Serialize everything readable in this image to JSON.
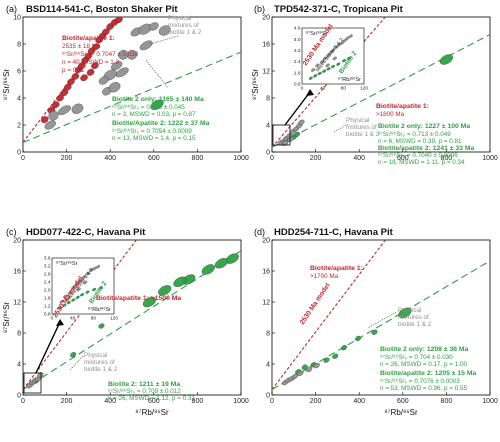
{
  "colors": {
    "biotite1": "#c0262b",
    "biotite2": "#2ea043",
    "mixture": "#909090",
    "model": "#c0262b",
    "frame": "#000000"
  },
  "chart_data": [
    {
      "type": "scatter",
      "panel_label": "(a)",
      "title": "BSD114-541-C, Boston Shaker Pit",
      "xlabel": "",
      "ylabel": "⁸⁷Sr/⁸⁶Sr",
      "xlim": [
        0,
        1000
      ],
      "ylim": [
        0,
        10
      ],
      "xticks": [
        "0",
        "200",
        "400",
        "600",
        "800",
        "1000"
      ],
      "yticks": [
        "0",
        "2",
        "4",
        "6",
        "8",
        "10"
      ],
      "series": [
        {
          "group": "biotite1",
          "points": [
            [
              100,
              2.4
            ],
            [
              130,
              3.1
            ],
            [
              150,
              3.5
            ],
            [
              170,
              4.0
            ],
            [
              190,
              4.4
            ],
            [
              205,
              4.8
            ],
            [
              220,
              5.2
            ],
            [
              240,
              5.6
            ],
            [
              255,
              6.1
            ],
            [
              270,
              6.4
            ],
            [
              285,
              6.8
            ],
            [
              300,
              7.1
            ],
            [
              315,
              7.5
            ],
            [
              335,
              7.8
            ],
            [
              350,
              8.3
            ],
            [
              365,
              8.6
            ],
            [
              380,
              8.9
            ],
            [
              400,
              9.3
            ],
            [
              420,
              9.6
            ],
            [
              440,
              9.8
            ],
            [
              310,
              5.9
            ],
            [
              330,
              6.4
            ],
            [
              280,
              5.5
            ]
          ]
        },
        {
          "group": "mixture",
          "points": [
            [
              385,
              4.5
            ],
            [
              420,
              4.8
            ],
            [
              455,
              5.9
            ],
            [
              500,
              7.2
            ],
            [
              520,
              8.9
            ],
            [
              560,
              9.1
            ],
            [
              600,
              9.3
            ],
            [
              650,
              9.0
            ],
            [
              565,
              7.9
            ],
            [
              460,
              7.2
            ],
            [
              430,
              6.4
            ],
            [
              400,
              5.7
            ],
            [
              370,
              5.3
            ],
            [
              250,
              3.2
            ],
            [
              190,
              3.1
            ],
            [
              140,
              2.7
            ],
            [
              125,
              2.0
            ]
          ]
        },
        {
          "group": "biotite2",
          "points": [
            [
              615,
              3.5
            ]
          ]
        }
      ],
      "lines": [
        {
          "group": "model",
          "points": [
            [
              0,
              0.72
            ],
            [
              440,
              10
            ]
          ]
        },
        {
          "group": "biotite2",
          "points": [
            [
              0,
              0.7
            ],
            [
              1000,
              7.4
            ]
          ]
        }
      ],
      "annotations": [
        {
          "text": "Biotite/apatite 1:",
          "color": "biotite1",
          "bold": true
        },
        {
          "text": "2535 ± 18 Ma",
          "color": "biotite1"
        },
        {
          "text": "⁸⁷Sr/⁸⁶Sr₀ = 0.7047 ± 0.010",
          "color": "biotite1"
        },
        {
          "text": "n = 40, MSWD = 1.3",
          "color": "biotite1"
        },
        {
          "text": "p = 0.11",
          "color": "biotite1"
        },
        {
          "text": "Physical",
          "color": "mixture"
        },
        {
          "text": "mixtures of",
          "color": "mixture"
        },
        {
          "text": "biotite 1 & 2",
          "color": "mixture"
        },
        {
          "text": "Biotite 2 only: 1165 ± 140 Ma",
          "color": "biotite2",
          "bold": true
        },
        {
          "text": "⁸⁷Sr/⁸⁶Sr₀ = 0.720 ± 0.045",
          "color": "biotite2"
        },
        {
          "text": "n = 3, MSWD = 0.03, p = 0.87",
          "color": "biotite2"
        },
        {
          "text": "Biotite/Apatite 2: 1222 ± 37 Ma",
          "color": "biotite2",
          "bold": true
        },
        {
          "text": "⁸⁷Sr/⁸⁶Sr₀ = 0.7054 ± 0.0009",
          "color": "biotite2"
        },
        {
          "text": "n = 13, MSWD = 1.4, p = 0.15",
          "color": "biotite2"
        }
      ]
    },
    {
      "type": "scatter",
      "panel_label": "(b)",
      "title": "TPD542-371-C, Tropicana Pit",
      "xlabel": "",
      "ylabel": "⁸⁷Sr/⁸⁶Sr",
      "xlim": [
        0,
        1000
      ],
      "ylim": [
        0,
        20
      ],
      "xticks": [
        "0",
        "200",
        "400",
        "600",
        "800",
        "1000"
      ],
      "yticks": [
        "0",
        "4",
        "8",
        "12",
        "16",
        "20"
      ],
      "series": [
        {
          "group": "biotite2",
          "points": [
            [
              800,
              13.7
            ],
            [
              70,
              1.8
            ],
            [
              100,
              2.2
            ],
            [
              115,
              2.6
            ]
          ]
        },
        {
          "group": "mixture",
          "points": [
            [
              40,
              1.4
            ],
            [
              55,
              1.6
            ],
            [
              65,
              2.0
            ],
            [
              80,
              2.4
            ],
            [
              95,
              3.0
            ],
            [
              110,
              3.4
            ],
            [
              125,
              3.9
            ],
            [
              135,
              4.4
            ],
            [
              85,
              1.9
            ],
            [
              60,
              1.3
            ]
          ]
        }
      ],
      "lines": [
        {
          "group": "model",
          "points": [
            [
              0,
              0.7
            ],
            [
              520,
              20
            ]
          ]
        },
        {
          "group": "biotite2",
          "points": [
            [
              0,
              0.7
            ],
            [
              1000,
              17.4
            ]
          ]
        }
      ],
      "inset": {
        "ylabel": "⁸⁷Sr/⁸⁶Sr",
        "xlabel": "⁸⁷Rb/⁸⁶Sr",
        "xticks": [
          "0",
          "40",
          "80",
          "120"
        ],
        "yticks": [
          "0.8",
          "1.6",
          "2.4",
          "3.2",
          "4.0",
          "4.8"
        ],
        "xlim": [
          0,
          140
        ],
        "ylim": [
          0.4,
          5.2
        ],
        "label_mix": "Mixed biotite 1 & 2",
        "label_bt2": "Biotite 2",
        "points_mixture": [
          [
            25,
            1.6
          ],
          [
            35,
            2.0
          ],
          [
            45,
            2.3
          ],
          [
            52,
            2.6
          ],
          [
            60,
            2.9
          ],
          [
            68,
            3.2
          ],
          [
            75,
            3.5
          ],
          [
            82,
            3.7
          ],
          [
            90,
            3.9
          ],
          [
            96,
            4.1
          ],
          [
            102,
            4.3
          ],
          [
            110,
            4.5
          ],
          [
            58,
            2.0
          ],
          [
            74,
            2.6
          ]
        ],
        "points_bt2": [
          [
            20,
            0.9
          ],
          [
            30,
            1.1
          ],
          [
            40,
            1.3
          ],
          [
            50,
            1.5
          ],
          [
            60,
            1.7
          ],
          [
            70,
            1.9
          ],
          [
            82,
            2.1
          ],
          [
            95,
            2.4
          ],
          [
            106,
            2.6
          ]
        ]
      },
      "annotations": [
        {
          "text": "2530 Ma model",
          "color": "model",
          "bold": true
        },
        {
          "text": "Biotite/apatite 1:",
          "color": "biotite1",
          "bold": true
        },
        {
          "text": ">1800 Ma",
          "color": "biotite1"
        },
        {
          "text": "Physical",
          "color": "mixture"
        },
        {
          "text": "mixtures of",
          "color": "mixture"
        },
        {
          "text": "biotite 1 & 2",
          "color": "mixture"
        },
        {
          "text": "Biotite 2 only: 1227 ± 100 Ma",
          "color": "biotite2",
          "bold": true
        },
        {
          "text": "⁸⁷Sr/⁸⁶Sr₀ = 0.713 ± 0.049",
          "color": "biotite2"
        },
        {
          "text": "n = 6, MSWD = 0.39, p = 0.81",
          "color": "biotite2"
        },
        {
          "text": "Biotite/apatite 2: 1241 ± 33 Ma",
          "color": "biotite2",
          "bold": true
        },
        {
          "text": "⁸⁷Sr/⁸⁶Sr₀ = 0.7040 ± 0.0006",
          "color": "biotite2"
        },
        {
          "text": "n = 18, MSWD = 1.11, p = 0.34",
          "color": "biotite2"
        }
      ]
    },
    {
      "type": "scatter",
      "panel_label": "(c)",
      "title": "HDD077-422-C, Havana Pit",
      "xlabel": "⁸⁷Rb/⁸⁶Sr",
      "ylabel": "⁸⁷Sr/⁸⁶Sr",
      "xlim": [
        0,
        1000
      ],
      "ylim": [
        0,
        20
      ],
      "xticks": [
        "0",
        "200",
        "400",
        "600",
        "800",
        "1000"
      ],
      "yticks": [
        "0",
        "4",
        "8",
        "12",
        "16",
        "20"
      ],
      "series": [
        {
          "group": "biotite2",
          "points": [
            [
              960,
              17.6
            ],
            [
              910,
              17.0
            ],
            [
              850,
              16.2
            ],
            [
              760,
              14.9
            ],
            [
              720,
              14.6
            ],
            [
              650,
              13.5
            ],
            [
              580,
              12.0
            ],
            [
              230,
              5.2
            ],
            [
              360,
              8.9
            ],
            [
              40,
              1.5
            ],
            [
              60,
              1.8
            ]
          ]
        },
        {
          "group": "mixture",
          "points": [
            [
              30,
              1.2
            ],
            [
              45,
              1.6
            ],
            [
              55,
              1.9
            ],
            [
              70,
              2.1
            ],
            [
              80,
              2.6
            ]
          ]
        }
      ],
      "lines": [
        {
          "group": "model",
          "points": [
            [
              0,
              0.7
            ],
            [
              520,
              20
            ]
          ]
        },
        {
          "group": "biotite2",
          "points": [
            [
              0,
              0.7
            ],
            [
              1000,
              18.6
            ]
          ]
        }
      ],
      "inset": {
        "ylabel": "⁸⁷Sr/⁸⁶Sr",
        "xlabel": "⁸⁷Rb/⁸⁶Sr",
        "xticks": [
          "0",
          "40",
          "80",
          "120"
        ],
        "yticks": [
          "0.8",
          "1.2",
          "1.6",
          "2.0",
          "2.4",
          "2.8",
          "3.2",
          "3.6"
        ],
        "xlim": [
          0,
          140
        ],
        "ylim": [
          0.6,
          3.8
        ],
        "label_mix": "Mixed biotite 1 & 2",
        "label_bt2": "Biotite 2",
        "points_mixture": [
          [
            22,
            1.3
          ],
          [
            30,
            1.6
          ],
          [
            40,
            1.8
          ],
          [
            48,
            2.1
          ],
          [
            56,
            2.3
          ],
          [
            64,
            2.5
          ],
          [
            72,
            2.7
          ],
          [
            80,
            2.9
          ],
          [
            88,
            3.1
          ],
          [
            96,
            3.2
          ],
          [
            104,
            3.3
          ],
          [
            60,
            2.0
          ],
          [
            75,
            2.4
          ]
        ],
        "points_bt2": [
          [
            18,
            0.95
          ],
          [
            28,
            1.1
          ],
          [
            38,
            1.25
          ],
          [
            48,
            1.4
          ],
          [
            58,
            1.55
          ],
          [
            68,
            1.7
          ],
          [
            80,
            1.85
          ],
          [
            95,
            2.0
          ],
          [
            110,
            2.1
          ]
        ]
      },
      "annotations": [
        {
          "text": "2530 Ma model",
          "color": "model",
          "bold": true
        },
        {
          "text": "Biotite/apatite 1: >1500 Ma",
          "color": "biotite1",
          "bold": true
        },
        {
          "text": "Physical",
          "color": "mixture"
        },
        {
          "text": "mixtures of",
          "color": "mixture"
        },
        {
          "text": "biotite 1 & 2",
          "color": "mixture"
        },
        {
          "text": "Biotite 2: 1211 ± 19 Ma",
          "color": "biotite2",
          "bold": true
        },
        {
          "text": "⁸⁷Sr/⁸⁶Sr₀ = 0.709 ± 0.012",
          "color": "biotite2"
        },
        {
          "text": "n = 26, MSWD = 1.12, p = 0.31",
          "color": "biotite2"
        }
      ]
    },
    {
      "type": "scatter",
      "panel_label": "(d)",
      "title": "HDD254-711-C, Havana Pit",
      "xlabel": "⁸⁷Rb/⁸⁶Sr",
      "ylabel": "",
      "xlim": [
        0,
        1000
      ],
      "ylim": [
        0,
        20
      ],
      "xticks": [
        "0",
        "200",
        "400",
        "600",
        "800",
        "1000"
      ],
      "yticks": [
        "0",
        "4",
        "8",
        "12",
        "16",
        "20"
      ],
      "series": [
        {
          "group": "biotite2",
          "points": [
            [
              610,
              10.6
            ],
            [
              470,
              8.1
            ],
            [
              395,
              7.3
            ],
            [
              330,
              6.1
            ],
            [
              290,
              5.0
            ],
            [
              250,
              4.5
            ],
            [
              190,
              3.9
            ],
            [
              150,
              3.6
            ],
            [
              120,
              3.0
            ]
          ]
        },
        {
          "group": "mixture",
          "points": [
            [
              60,
              1.6
            ],
            [
              75,
              1.9
            ],
            [
              90,
              2.1
            ],
            [
              105,
              2.4
            ],
            [
              130,
              2.8
            ],
            [
              170,
              3.3
            ],
            [
              205,
              3.8
            ]
          ]
        }
      ],
      "lines": [
        {
          "group": "model",
          "points": [
            [
              0,
              0.7
            ],
            [
              520,
              20
            ]
          ]
        },
        {
          "group": "biotite2",
          "points": [
            [
              0,
              0.7
            ],
            [
              1000,
              17.3
            ]
          ]
        }
      ],
      "annotations": [
        {
          "text": "2530 Ma model",
          "color": "model",
          "bold": true
        },
        {
          "text": "Biotite/apatite 1:",
          "color": "biotite1",
          "bold": true
        },
        {
          "text": ">1700 Ma",
          "color": "biotite1"
        },
        {
          "text": "Physical",
          "color": "mixture"
        },
        {
          "text": "mixtures of",
          "color": "mixture"
        },
        {
          "text": "biotite 1 & 2",
          "color": "mixture"
        },
        {
          "text": "Biotite 2 only: 1208 ± 36 Ma",
          "color": "biotite2",
          "bold": true
        },
        {
          "text": "⁸⁷Sr/⁸⁶Sr₀ = 0.704 ± 0.030",
          "color": "biotite2"
        },
        {
          "text": "n = 26, MSWD = 0.17, p = 1.00",
          "color": "biotite2"
        },
        {
          "text": "Biotite/apatite 2: 1205 ± 15 Ma",
          "color": "biotite2",
          "bold": true
        },
        {
          "text": "⁸⁷Sr/⁸⁶Sr₀ = 0.7076 ± 0.0003",
          "color": "biotite2"
        },
        {
          "text": "n = 53, MSWD = 0.96, p = 0.55",
          "color": "biotite2"
        }
      ]
    }
  ]
}
